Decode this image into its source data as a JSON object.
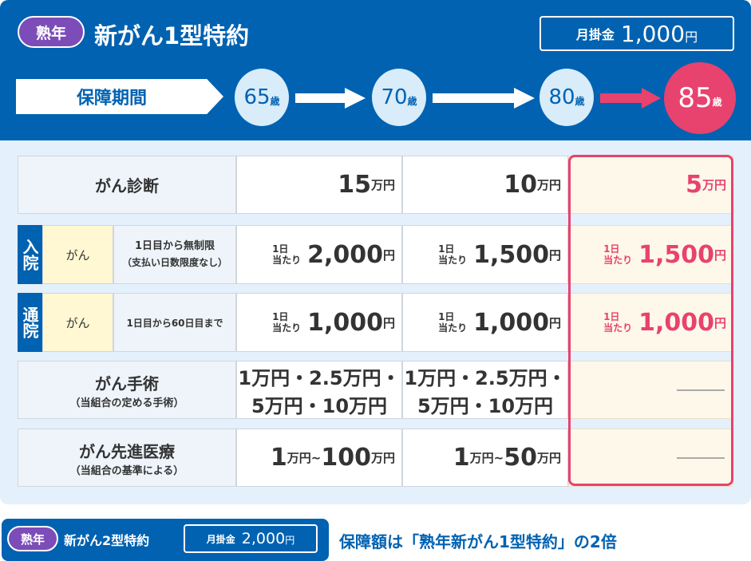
{
  "header": {
    "badge": "熟年",
    "title": "新がん1型特約",
    "fee_label": "月掛金",
    "fee_value": "1,000",
    "fee_unit": "円"
  },
  "period": {
    "label": "保障期間",
    "ages": [
      {
        "num": "65",
        "unit": "歳"
      },
      {
        "num": "70",
        "unit": "歳"
      },
      {
        "num": "80",
        "unit": "歳"
      },
      {
        "num": "85",
        "unit": "歳"
      }
    ]
  },
  "table": {
    "diagnosis": {
      "label": "がん診断",
      "values": [
        {
          "num": "15",
          "unit": "万円"
        },
        {
          "num": "10",
          "unit": "万円"
        },
        {
          "num": "5",
          "unit": "万円"
        }
      ]
    },
    "hospital": {
      "tag": "入院",
      "type": "がん",
      "desc1": "1日目から無制限",
      "desc2": "（支払い日数限度なし）",
      "per1": "1日",
      "per2": "当たり",
      "values": [
        {
          "num": "2,000",
          "unit": "円"
        },
        {
          "num": "1,500",
          "unit": "円"
        },
        {
          "num": "1,500",
          "unit": "円"
        }
      ]
    },
    "outpatient": {
      "tag": "通院",
      "type": "がん",
      "desc": "1日目から60日目まで",
      "per1": "1日",
      "per2": "当たり",
      "values": [
        {
          "num": "1,000",
          "unit": "円"
        },
        {
          "num": "1,000",
          "unit": "円"
        },
        {
          "num": "1,000",
          "unit": "円"
        }
      ]
    },
    "surgery": {
      "label": "がん手術",
      "sub": "（当組合の定める手術）",
      "value": "1万円・2.5万円・5万円・10万円",
      "parts": [
        "1",
        "2.5",
        "5",
        "10"
      ],
      "unit": "万円",
      "none": "—"
    },
    "advanced": {
      "label": "がん先進医療",
      "sub": "（当組合の基準による）",
      "values": [
        {
          "a": "1",
          "b": "100"
        },
        {
          "a": "1",
          "b": "50"
        }
      ],
      "unit": "万円",
      "sep": "~",
      "none": "—"
    }
  },
  "footer": {
    "badge": "熟年",
    "title": "新がん2型特約",
    "fee_label": "月掛金",
    "fee_value": "2,000",
    "fee_unit": "円",
    "note": "保障額は「熟年新がん1型特約」の2倍"
  },
  "colors": {
    "blue": "#0062b1",
    "pink": "#e8426e",
    "purple": "#7c4cb8"
  }
}
